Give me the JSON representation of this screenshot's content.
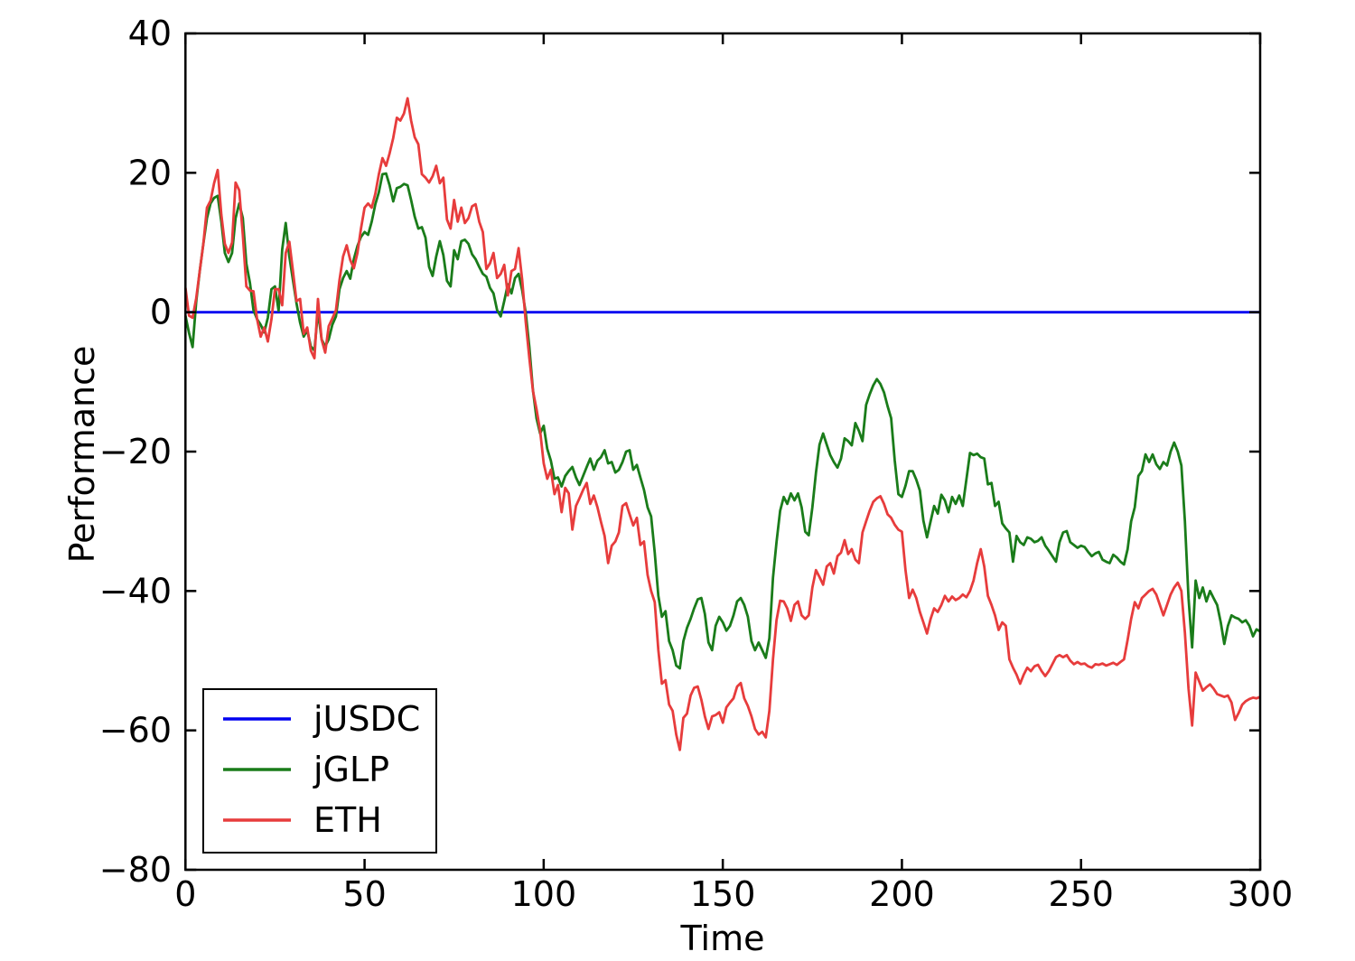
{
  "figure": {
    "background": "#ffffff",
    "frame_color": "#000000"
  },
  "chart_data": {
    "type": "line",
    "title": "",
    "xlabel": "Time",
    "ylabel": "Performance",
    "xlim": [
      0,
      300
    ],
    "ylim": [
      -80,
      40
    ],
    "xticks": [
      0,
      50,
      100,
      150,
      200,
      250,
      300
    ],
    "yticks": [
      40,
      20,
      0,
      -20,
      -40,
      -60,
      -80
    ],
    "grid": false,
    "legend": {
      "position": "lower-left",
      "entries": [
        "jUSDC",
        "jGLP",
        "ETH"
      ]
    },
    "series": [
      {
        "name": "jUSDC",
        "color": "#0202f0",
        "x_start": 0,
        "x_step": 1,
        "constant": 0,
        "n": 301,
        "values": null
      },
      {
        "name": "jGLP",
        "color": "#1a7c1a",
        "x_start": 0,
        "x_step": 1,
        "constant": null,
        "values": [
          -0.5,
          -3,
          -5,
          1.5,
          6,
          9.8,
          13.5,
          15.6,
          16.4,
          16.7,
          13,
          8.5,
          7.2,
          8.5,
          13.5,
          15.6,
          13.5,
          7,
          4.2,
          0.3,
          -1,
          -1.8,
          -2.9,
          -0.8,
          3.3,
          3.7,
          0.2,
          9,
          12.8,
          8,
          4.6,
          1.3,
          -1.5,
          -3.5,
          -2.6,
          -4.9,
          -5.5,
          0.2,
          -3.9,
          -4.9,
          -3.9,
          -1.8,
          -0.6,
          3.3,
          4.9,
          5.9,
          4.8,
          7.6,
          9.5,
          10.8,
          11.5,
          11.1,
          13,
          15.5,
          17.2,
          19.8,
          19.9,
          18.2,
          15.9,
          17.8,
          18,
          18.4,
          18.2,
          16.1,
          13.7,
          12,
          12.2,
          10.7,
          6.5,
          5.2,
          8,
          10.2,
          8.2,
          4.5,
          3.7,
          8.9,
          7.6,
          10.2,
          10.4,
          9.8,
          8.3,
          7.6,
          6.5,
          5.5,
          5.1,
          3.5,
          2.7,
          0.3,
          -0.6,
          1.6,
          4,
          2.7,
          4.9,
          5.5,
          3.1,
          -0.1,
          -5,
          -11.2,
          -15.2,
          -17.4,
          -16.3,
          -19.6,
          -21.3,
          -23.9,
          -23.7,
          -25,
          -23.5,
          -22.8,
          -22.2,
          -23.7,
          -24.8,
          -23.5,
          -22.2,
          -21,
          -22.6,
          -21.3,
          -20.8,
          -19.8,
          -21.7,
          -21.5,
          -23,
          -22.6,
          -21.5,
          -20,
          -19.8,
          -22.6,
          -21.9,
          -23.7,
          -25.5,
          -28,
          -29.3,
          -34.5,
          -40.7,
          -43.7,
          -42.9,
          -47.2,
          -48.5,
          -50.7,
          -51.1,
          -47.2,
          -45.3,
          -44,
          -42.5,
          -41.2,
          -41,
          -43.3,
          -47.4,
          -48.5,
          -45,
          -43.7,
          -44.5,
          -45.7,
          -45,
          -43.5,
          -41.5,
          -41,
          -42,
          -43.7,
          -47.2,
          -48.5,
          -47.4,
          -48.5,
          -49.6,
          -46.8,
          -38.1,
          -33,
          -28.5,
          -26.5,
          -27.5,
          -26,
          -27,
          -26,
          -28,
          -31.5,
          -32,
          -28,
          -23,
          -19,
          -17.4,
          -19,
          -20.5,
          -21.5,
          -22.3,
          -21,
          -18.1,
          -18.5,
          -19.1,
          -15.9,
          -17,
          -18.5,
          -13.3,
          -11.8,
          -10.5,
          -9.6,
          -10.3,
          -11.5,
          -13.5,
          -15.2,
          -21.3,
          -26.1,
          -26.5,
          -24.9,
          -22.8,
          -22.8,
          -24,
          -25.6,
          -29.9,
          -32.3,
          -30,
          -27.8,
          -28.9,
          -26.2,
          -27,
          -28.7,
          -26.5,
          -27.5,
          -26.3,
          -27.8,
          -24,
          -20.2,
          -20.5,
          -20.3,
          -20.8,
          -21,
          -24.7,
          -24.5,
          -27.8,
          -27.2,
          -30.3,
          -31,
          -31.6,
          -35.8,
          -32.1,
          -33,
          -33.4,
          -32.3,
          -32.5,
          -33,
          -32.8,
          -32.3,
          -33.5,
          -34.2,
          -35,
          -35.8,
          -33,
          -31.6,
          -31.4,
          -33,
          -33.4,
          -33.8,
          -33.5,
          -33.7,
          -34.4,
          -35,
          -34.6,
          -34.4,
          -35.5,
          -35.8,
          -36,
          -34.8,
          -35.2,
          -35.8,
          -36.2,
          -34,
          -30,
          -28,
          -23.5,
          -22.8,
          -20.4,
          -21.5,
          -20.4,
          -21.8,
          -22.5,
          -21.5,
          -22,
          -20,
          -18.7,
          -20,
          -22,
          -30,
          -41,
          -48.1,
          -38.5,
          -41,
          -39.5,
          -41.5,
          -40,
          -41,
          -42,
          -44.5,
          -47.6,
          -45,
          -43.5,
          -43.8,
          -44,
          -44.5,
          -44.2,
          -45,
          -46.5,
          -45.5,
          -45.8
        ]
      },
      {
        "name": "ETH",
        "color": "#e73c3c",
        "x_start": 0,
        "x_step": 1,
        "constant": null,
        "values": [
          3.5,
          -0.5,
          -0.8,
          2,
          6,
          9.8,
          15,
          16,
          18.5,
          20.4,
          14,
          9.8,
          8.5,
          10,
          18.6,
          17.5,
          11.1,
          3.7,
          3.1,
          3,
          -1,
          -3.5,
          -2.2,
          -4.2,
          -1,
          3.3,
          3.3,
          1,
          8.5,
          10.1,
          5.9,
          1.6,
          1.9,
          -3.1,
          -2.2,
          -5.5,
          -6.6,
          1.9,
          -3.9,
          -5.8,
          -2,
          -0.9,
          0.3,
          4.6,
          8,
          9.6,
          7.5,
          6.3,
          8.5,
          12,
          15,
          15.6,
          15,
          17,
          19.8,
          22.1,
          21,
          22.8,
          25,
          27.9,
          27.5,
          28.5,
          30.7,
          27.5,
          25.1,
          24.1,
          19.8,
          19.3,
          18.6,
          19.5,
          21,
          18.5,
          19.3,
          13.3,
          12,
          16.1,
          13,
          15,
          12.8,
          13.5,
          15.2,
          15.5,
          13,
          11.5,
          6.2,
          7,
          8.5,
          4.9,
          5.5,
          6.8,
          2.4,
          5.9,
          6.2,
          9.2,
          4.6,
          -1.4,
          -6.6,
          -11.3,
          -13.9,
          -17,
          -21.7,
          -23.9,
          -22.6,
          -26.1,
          -24.8,
          -28.7,
          -25.2,
          -26,
          -31.2,
          -27.8,
          -26.7,
          -25.5,
          -24.5,
          -27.5,
          -26.3,
          -28,
          -30.1,
          -32.1,
          -36,
          -33.5,
          -32.9,
          -31.6,
          -27.8,
          -27.4,
          -29,
          -30.6,
          -29.5,
          -33.4,
          -32.9,
          -37.7,
          -40,
          -41.6,
          -48.5,
          -53.3,
          -52.8,
          -56.3,
          -57.2,
          -60.6,
          -62.8,
          -58.2,
          -57.6,
          -55,
          -53.9,
          -53.7,
          -55.6,
          -58,
          -59.8,
          -58,
          -57.8,
          -57.4,
          -58.9,
          -56.7,
          -56,
          -55.4,
          -53.7,
          -53.2,
          -55.4,
          -56.5,
          -58,
          -59.8,
          -60.6,
          -60.2,
          -61,
          -57.2,
          -49.8,
          -44.2,
          -41.4,
          -41.5,
          -42.5,
          -44.3,
          -42,
          -41.5,
          -43.5,
          -44,
          -43.5,
          -39.5,
          -37,
          -38,
          -39.1,
          -36.5,
          -36,
          -37.5,
          -35,
          -34.5,
          -32.7,
          -34.7,
          -34,
          -35.5,
          -36,
          -31.6,
          -30,
          -28.5,
          -27.2,
          -26.7,
          -26.4,
          -27.5,
          -29,
          -29.5,
          -30.5,
          -31.2,
          -31.5,
          -37,
          -41,
          -39.8,
          -41,
          -43,
          -44.5,
          -46.1,
          -44,
          -42.5,
          -43,
          -42,
          -40.7,
          -41.5,
          -40.8,
          -41.3,
          -41,
          -40.5,
          -40.9,
          -40,
          -38.5,
          -36,
          -34,
          -36.5,
          -40.7,
          -42,
          -43.5,
          -45.6,
          -44.5,
          -45,
          -49.8,
          -51,
          -52,
          -53.3,
          -52,
          -51,
          -51.5,
          -50.8,
          -50.6,
          -51.5,
          -52.2,
          -51.5,
          -50.5,
          -49.5,
          -49.2,
          -49.5,
          -49.2,
          -50,
          -50.5,
          -50.2,
          -50.5,
          -50.4,
          -50.8,
          -51,
          -50.5,
          -50.6,
          -50.4,
          -50.7,
          -50.5,
          -50.3,
          -50.6,
          -50.2,
          -49.8,
          -47,
          -44,
          -41.6,
          -42.5,
          -41,
          -40.5,
          -40,
          -39.7,
          -40.5,
          -42,
          -43.5,
          -42,
          -40.5,
          -39.5,
          -38.8,
          -40,
          -46,
          -54,
          -59.3,
          -51.7,
          -53,
          -54.3,
          -53.8,
          -53.4,
          -54,
          -54.8,
          -55,
          -55.2,
          -55,
          -56,
          -58.5,
          -57.5,
          -56.3,
          -55.8,
          -55.5,
          -55.3,
          -55.4,
          -55.2
        ]
      }
    ]
  }
}
